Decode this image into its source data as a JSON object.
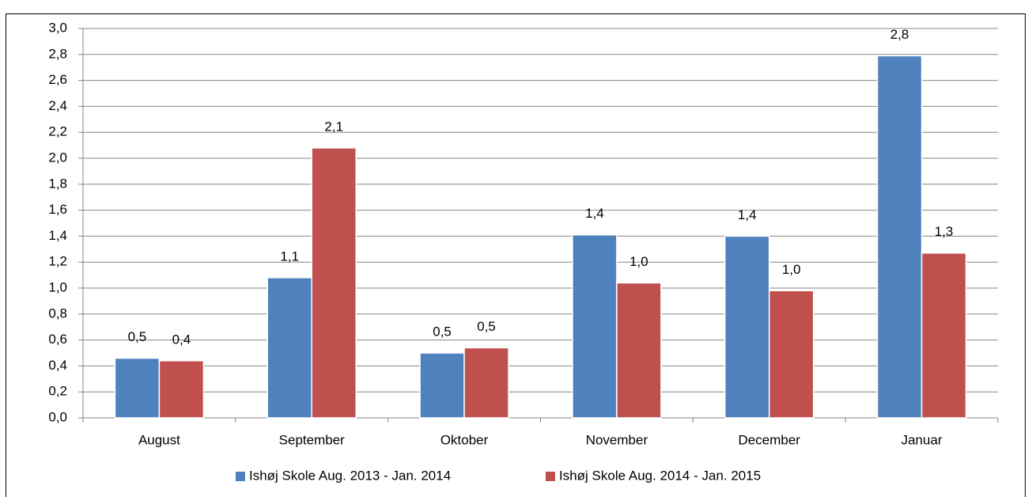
{
  "chart_data": {
    "type": "bar",
    "categories": [
      "August",
      "September",
      "Oktober",
      "November",
      "December",
      "Januar"
    ],
    "series": [
      {
        "name": "Ishøj Skole Aug. 2013 - Jan. 2014",
        "color": "#4f81bd",
        "values": [
          0.46,
          1.08,
          0.5,
          1.41,
          1.4,
          2.79
        ],
        "value_labels": [
          "0,5",
          "1,1",
          "0,5",
          "1,4",
          "1,4",
          "2,8"
        ]
      },
      {
        "name": "Ishøj Skole Aug. 2014 - Jan. 2015",
        "color": "#c0504d",
        "values": [
          0.44,
          2.08,
          0.54,
          1.04,
          0.98,
          1.27
        ],
        "value_labels": [
          "0,4",
          "2,1",
          "0,5",
          "1,0",
          "1,0",
          "1,3"
        ]
      }
    ],
    "ylim": [
      0,
      3
    ],
    "yticks": [
      {
        "value": 0,
        "label": "0,0"
      },
      {
        "value": 0.2,
        "label": "0,2"
      },
      {
        "value": 0.4,
        "label": "0,4"
      },
      {
        "value": 0.6,
        "label": "0,6"
      },
      {
        "value": 0.8,
        "label": "0,8"
      },
      {
        "value": 1,
        "label": "1,0"
      },
      {
        "value": 1.2,
        "label": "1,2"
      },
      {
        "value": 1.4,
        "label": "1,4"
      },
      {
        "value": 1.6,
        "label": "1,6"
      },
      {
        "value": 1.8,
        "label": "1,8"
      },
      {
        "value": 2,
        "label": "2,0"
      },
      {
        "value": 2.2,
        "label": "2,2"
      },
      {
        "value": 2.4,
        "label": "2,4"
      },
      {
        "value": 2.6,
        "label": "2,6"
      },
      {
        "value": 2.8,
        "label": "2,8"
      },
      {
        "value": 3,
        "label": "3,0"
      }
    ],
    "grid": true,
    "legend": "bottom"
  }
}
